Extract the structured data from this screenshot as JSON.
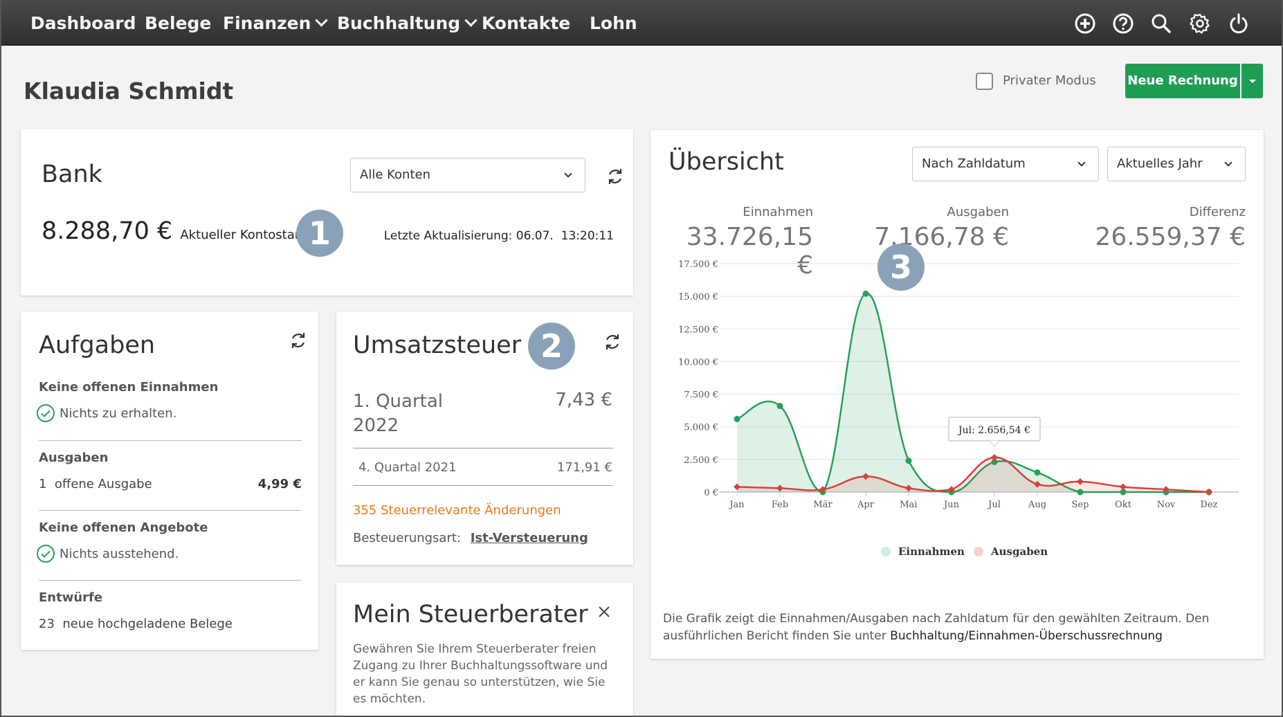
{
  "nav": {
    "items": [
      "Dashboard",
      "Belege",
      "Finanzen",
      "Buchhaltung",
      "Kontakte",
      "Lohn"
    ],
    "icons": [
      "add-circle-icon",
      "help-icon",
      "search-icon",
      "gear-icon",
      "power-icon"
    ]
  },
  "header": {
    "title": "Klaudia Schmidt",
    "private_mode_label": "Privater Modus",
    "new_invoice_label": "Neue Rechnung"
  },
  "bank": {
    "title": "Bank",
    "account_select": "Alle Konten",
    "balance": "8.288,70 €",
    "balance_label": "Aktueller Kontostand",
    "last_update": "Letzte Aktualisierung: 06.07.  13:20:11",
    "badge": "1"
  },
  "tasks": {
    "title": "Aufgaben",
    "income_heading": "Keine offenen Einnahmen",
    "income_status": "Nichts zu erhalten.",
    "expenses_heading": "Ausgaben",
    "expenses_count": "1",
    "expenses_text": "offene Ausgabe",
    "expenses_amount": "4,99 €",
    "offers_heading": "Keine offenen Angebote",
    "offers_status": "Nichts ausstehend.",
    "drafts_heading": "Entwürfe",
    "drafts_count": "23",
    "drafts_text": "neue hochgeladene Belege"
  },
  "vat": {
    "title": "Umsatzsteuer",
    "badge": "2",
    "current_period_line1": "1. Quartal",
    "current_period_line2": "2022",
    "current_amount": "7,43 €",
    "previous_period": "4. Quartal 2021",
    "previous_amount": "171,91 €",
    "changes_link": "355 Steuerrelevante Änderungen",
    "taxation_label": "Besteuerungsart:",
    "taxation_value": "Ist-Versteuerung"
  },
  "advisor": {
    "title": "Mein Steuerberater",
    "text": "Gewähren Sie Ihrem Steuerberater freien Zugang zu Ihrer Buchhaltungssoftware und er kann Sie genau so unterstützen,  wie Sie es möchten."
  },
  "overview": {
    "title": "Übersicht",
    "select_date": "Nach Zahldatum",
    "select_period": "Aktuelles Jahr",
    "income_label": "Einnahmen",
    "income_value": "33.726,15 €",
    "expense_label": "Ausgaben",
    "expense_value": "7.166,78 €",
    "diff_label": "Differenz",
    "diff_value": "26.559,37 €",
    "badge": "3",
    "tooltip": "Jul: 2.656,54 €",
    "footnote_text": "Die Grafik zeigt die Einnahmen/Ausgaben nach Zahldatum für den gewählten Zeitraum. Den ausführlichen Bericht finden Sie unter",
    "footnote_link": "Buchhaltung/Einnahmen-Überschussrechnung"
  },
  "chart_data": {
    "type": "area",
    "categories": [
      "Jan",
      "Feb",
      "Mär",
      "Apr",
      "Mai",
      "Jun",
      "Jul",
      "Aug",
      "Sep",
      "Okt",
      "Nov",
      "Dez"
    ],
    "yticks": [
      "0 €",
      "2.500 €",
      "5.000 €",
      "7.500 €",
      "10.000 €",
      "12.500 €",
      "15.000 €",
      "17.500 €"
    ],
    "ylim": [
      0,
      17500
    ],
    "series": [
      {
        "name": "Einnahmen",
        "color": "#27a05a",
        "values": [
          5600,
          6600,
          0,
          15200,
          2400,
          0,
          2300,
          1500,
          0,
          0,
          0,
          0
        ]
      },
      {
        "name": "Ausgaben",
        "color": "#d9403b",
        "values": [
          400,
          300,
          200,
          1200,
          300,
          200,
          2656.54,
          600,
          800,
          400,
          200,
          0
        ]
      }
    ]
  }
}
